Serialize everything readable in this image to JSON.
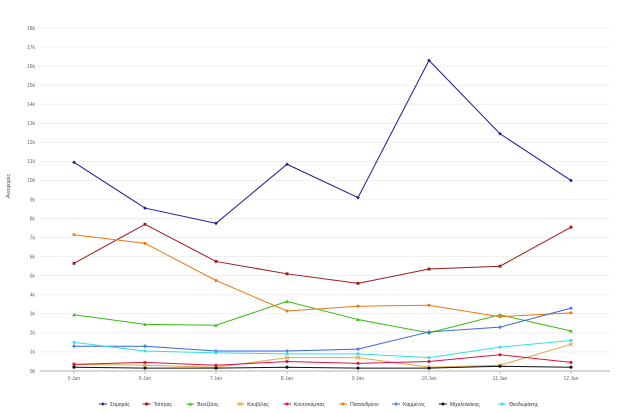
{
  "chart_data": {
    "type": "line",
    "title": "",
    "xlabel": "",
    "ylabel": "Αναφορές",
    "ylim": [
      0,
      18000
    ],
    "yticks": [
      {
        "v": 0,
        "label": "0k"
      },
      {
        "v": 1000,
        "label": "1k"
      },
      {
        "v": 2000,
        "label": "2k"
      },
      {
        "v": 3000,
        "label": "3k"
      },
      {
        "v": 4000,
        "label": "4k"
      },
      {
        "v": 5000,
        "label": "5k"
      },
      {
        "v": 6000,
        "label": "6k"
      },
      {
        "v": 7000,
        "label": "7k"
      },
      {
        "v": 8000,
        "label": "8k"
      },
      {
        "v": 9000,
        "label": "9k"
      },
      {
        "v": 10000,
        "label": "10k"
      },
      {
        "v": 11000,
        "label": "11k"
      },
      {
        "v": 12000,
        "label": "12k"
      },
      {
        "v": 13000,
        "label": "13k"
      },
      {
        "v": 14000,
        "label": "14k"
      },
      {
        "v": 15000,
        "label": "15k"
      },
      {
        "v": 16000,
        "label": "16k"
      },
      {
        "v": 17000,
        "label": "17k"
      },
      {
        "v": 18000,
        "label": "18k"
      }
    ],
    "categories": [
      "5 Jan",
      "6 Jan",
      "7 Jan",
      "8 Jan",
      "9 Jan",
      "10 Jan",
      "11 Jan",
      "12 Jan"
    ],
    "grid": true,
    "legend": "bottom",
    "series": [
      {
        "name": "Σαμαράς",
        "color": "#1a1a9c",
        "marker": "diamond",
        "values": [
          10950,
          8550,
          7750,
          10850,
          9100,
          16300,
          12450,
          10000
        ]
      },
      {
        "name": "Τσίπρας",
        "color": "#9b1a1a",
        "marker": "square",
        "values": [
          5650,
          7700,
          5750,
          5100,
          4600,
          5350,
          5500,
          7550
        ]
      },
      {
        "name": "Βενιζέλος",
        "color": "#33bb11",
        "marker": "triangle",
        "values": [
          2950,
          2450,
          2400,
          3650,
          2700,
          2000,
          2950,
          2100
        ]
      },
      {
        "name": "Κουβέλης",
        "color": "#ddaa44",
        "marker": "x",
        "values": [
          350,
          300,
          200,
          700,
          700,
          200,
          300,
          1400
        ]
      },
      {
        "name": "Κουτσούμπας",
        "color": "#dd1144",
        "marker": "circle",
        "values": [
          350,
          450,
          300,
          500,
          400,
          500,
          850,
          450
        ]
      },
      {
        "name": "Παπανδρέου",
        "color": "#ee7711",
        "marker": "circle",
        "values": [
          7150,
          6700,
          4750,
          3150,
          3400,
          3450,
          2850,
          3050
        ]
      },
      {
        "name": "Καμμένος",
        "color": "#3366dd",
        "marker": "plus",
        "values": [
          1300,
          1300,
          1050,
          1050,
          1150,
          2050,
          2300,
          3300
        ]
      },
      {
        "name": "Μιχαλολιάκος",
        "color": "#111111",
        "marker": "circle",
        "values": [
          200,
          150,
          150,
          200,
          150,
          150,
          250,
          200
        ]
      },
      {
        "name": "Θεοδωράκης",
        "color": "#33ddee",
        "marker": "circle",
        "values": [
          1500,
          1050,
          950,
          900,
          900,
          700,
          1250,
          1600
        ]
      }
    ]
  }
}
